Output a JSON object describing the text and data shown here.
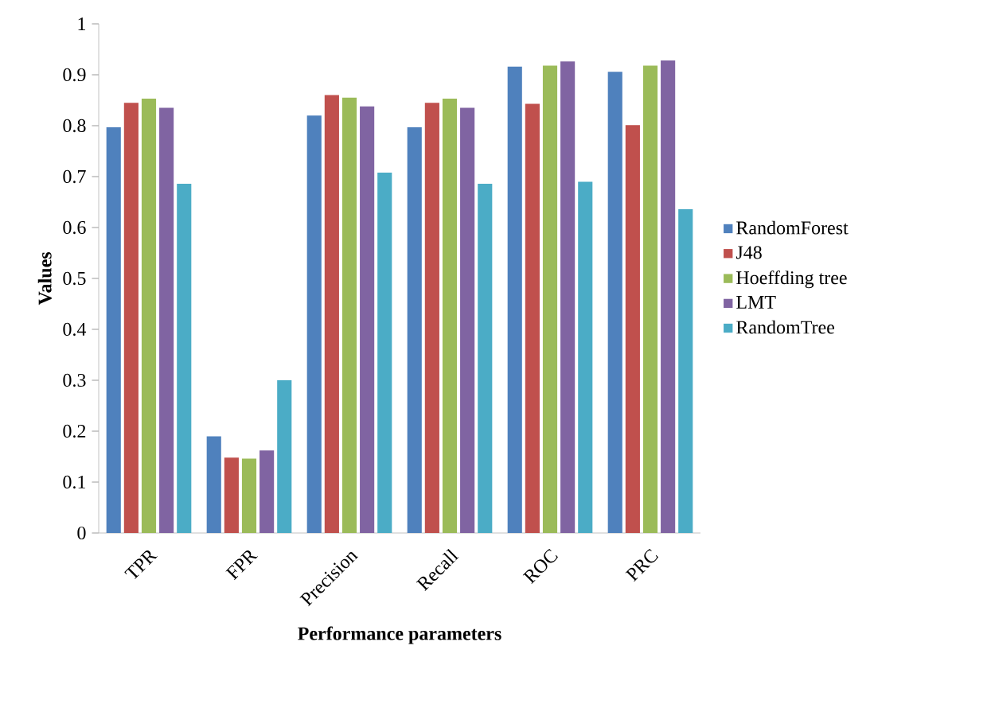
{
  "chart_data": {
    "type": "bar",
    "xlabel": "Performance parameters",
    "ylabel": "Values",
    "categories": [
      "TPR",
      "FPR",
      "Precision",
      "Recall",
      "ROC",
      "PRC"
    ],
    "series": [
      {
        "name": "RandomForest",
        "color": "#4f81bd",
        "values": [
          0.797,
          0.19,
          0.82,
          0.797,
          0.916,
          0.906
        ]
      },
      {
        "name": "J48",
        "color": "#c0504d",
        "values": [
          0.845,
          0.148,
          0.86,
          0.845,
          0.843,
          0.801
        ]
      },
      {
        "name": "Hoeffding tree",
        "color": "#9bbb59",
        "values": [
          0.853,
          0.146,
          0.855,
          0.853,
          0.918,
          0.918
        ]
      },
      {
        "name": "LMT",
        "color": "#8064a2",
        "values": [
          0.835,
          0.162,
          0.838,
          0.835,
          0.926,
          0.928
        ]
      },
      {
        "name": "RandomTree",
        "color": "#4bacc6",
        "values": [
          0.686,
          0.3,
          0.708,
          0.686,
          0.69,
          0.636
        ]
      }
    ],
    "ylim": [
      0,
      1
    ],
    "yticks": [
      0,
      0.1,
      0.2,
      0.3,
      0.4,
      0.5,
      0.6,
      0.7,
      0.8,
      0.9,
      1
    ],
    "grid": false,
    "legend": "right"
  }
}
